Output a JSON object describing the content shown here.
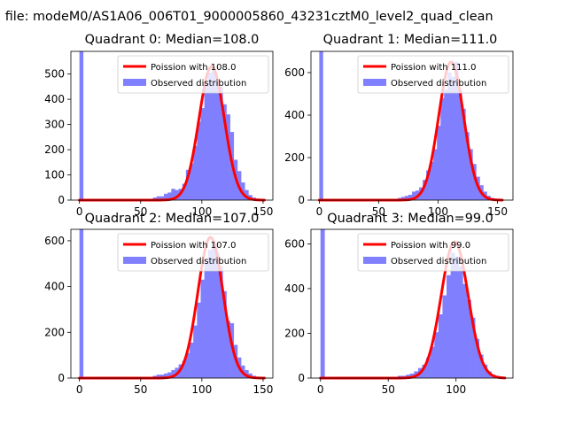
{
  "figure": {
    "suptitle": "n file: modeM0/AS1A06_006T01_9000005860_43231cztM0_level2_quad_clean"
  },
  "colors": {
    "hist": "#8080ff",
    "fit": "#ff0000",
    "axis": "#000000"
  },
  "chart_data": [
    {
      "type": "bar",
      "title": "Quadrant 0: Median=108.0",
      "xlim": [
        -7,
        158
      ],
      "ylim": [
        0,
        590
      ],
      "xticks": [
        0,
        50,
        100,
        150
      ],
      "yticks": [
        0,
        100,
        200,
        300,
        400,
        500
      ],
      "bin_width": 3,
      "bins": [
        {
          "x": 0,
          "count": 590
        },
        {
          "x": 3,
          "count": 5
        },
        {
          "x": 6,
          "count": 5
        },
        {
          "x": 9,
          "count": 5
        },
        {
          "x": 12,
          "count": 5
        },
        {
          "x": 15,
          "count": 5
        },
        {
          "x": 18,
          "count": 5
        },
        {
          "x": 21,
          "count": 5
        },
        {
          "x": 24,
          "count": 5
        },
        {
          "x": 27,
          "count": 5
        },
        {
          "x": 30,
          "count": 5
        },
        {
          "x": 33,
          "count": 5
        },
        {
          "x": 36,
          "count": 5
        },
        {
          "x": 39,
          "count": 5
        },
        {
          "x": 42,
          "count": 5
        },
        {
          "x": 45,
          "count": 5
        },
        {
          "x": 48,
          "count": 5
        },
        {
          "x": 51,
          "count": 5
        },
        {
          "x": 54,
          "count": 5
        },
        {
          "x": 57,
          "count": 5
        },
        {
          "x": 60,
          "count": 10
        },
        {
          "x": 63,
          "count": 15
        },
        {
          "x": 66,
          "count": 15
        },
        {
          "x": 69,
          "count": 25
        },
        {
          "x": 72,
          "count": 30
        },
        {
          "x": 75,
          "count": 45
        },
        {
          "x": 78,
          "count": 40
        },
        {
          "x": 81,
          "count": 45
        },
        {
          "x": 84,
          "count": 65
        },
        {
          "x": 87,
          "count": 120
        },
        {
          "x": 90,
          "count": 145
        },
        {
          "x": 93,
          "count": 215
        },
        {
          "x": 96,
          "count": 310
        },
        {
          "x": 99,
          "count": 365
        },
        {
          "x": 102,
          "count": 460
        },
        {
          "x": 105,
          "count": 505
        },
        {
          "x": 108,
          "count": 530
        },
        {
          "x": 111,
          "count": 480
        },
        {
          "x": 114,
          "count": 450
        },
        {
          "x": 117,
          "count": 380
        },
        {
          "x": 120,
          "count": 340
        },
        {
          "x": 123,
          "count": 270
        },
        {
          "x": 126,
          "count": 160
        },
        {
          "x": 129,
          "count": 115
        },
        {
          "x": 132,
          "count": 70
        },
        {
          "x": 135,
          "count": 40
        },
        {
          "x": 138,
          "count": 20
        },
        {
          "x": 141,
          "count": 10
        },
        {
          "x": 144,
          "count": 5
        },
        {
          "x": 147,
          "count": 5
        }
      ],
      "fit": {
        "mean": 108,
        "peak": 530,
        "x_range": [
          0,
          151
        ]
      },
      "legend": {
        "position": "upper right",
        "entries": [
          "Poission with 108.0",
          "Observed distribution"
        ]
      }
    },
    {
      "type": "bar",
      "title": "Quadrant 1: Median=111.0",
      "xlim": [
        -7,
        163
      ],
      "ylim": [
        0,
        700
      ],
      "xticks": [
        0,
        50,
        100,
        150
      ],
      "yticks": [
        0,
        200,
        400,
        600
      ],
      "bin_width": 3,
      "bins": [
        {
          "x": 0,
          "count": 700
        },
        {
          "x": 3,
          "count": 5
        },
        {
          "x": 6,
          "count": 5
        },
        {
          "x": 9,
          "count": 5
        },
        {
          "x": 12,
          "count": 5
        },
        {
          "x": 15,
          "count": 5
        },
        {
          "x": 18,
          "count": 5
        },
        {
          "x": 21,
          "count": 5
        },
        {
          "x": 24,
          "count": 5
        },
        {
          "x": 27,
          "count": 5
        },
        {
          "x": 30,
          "count": 5
        },
        {
          "x": 33,
          "count": 5
        },
        {
          "x": 36,
          "count": 5
        },
        {
          "x": 39,
          "count": 5
        },
        {
          "x": 42,
          "count": 5
        },
        {
          "x": 45,
          "count": 5
        },
        {
          "x": 48,
          "count": 5
        },
        {
          "x": 51,
          "count": 5
        },
        {
          "x": 54,
          "count": 5
        },
        {
          "x": 57,
          "count": 5
        },
        {
          "x": 60,
          "count": 5
        },
        {
          "x": 63,
          "count": 5
        },
        {
          "x": 66,
          "count": 10
        },
        {
          "x": 69,
          "count": 15
        },
        {
          "x": 72,
          "count": 20
        },
        {
          "x": 75,
          "count": 25
        },
        {
          "x": 78,
          "count": 40
        },
        {
          "x": 81,
          "count": 45
        },
        {
          "x": 84,
          "count": 60
        },
        {
          "x": 87,
          "count": 95
        },
        {
          "x": 90,
          "count": 140
        },
        {
          "x": 93,
          "count": 180
        },
        {
          "x": 96,
          "count": 240
        },
        {
          "x": 99,
          "count": 350
        },
        {
          "x": 102,
          "count": 480
        },
        {
          "x": 105,
          "count": 520
        },
        {
          "x": 108,
          "count": 600
        },
        {
          "x": 111,
          "count": 580
        },
        {
          "x": 114,
          "count": 650
        },
        {
          "x": 117,
          "count": 520
        },
        {
          "x": 120,
          "count": 430
        },
        {
          "x": 123,
          "count": 320
        },
        {
          "x": 126,
          "count": 240
        },
        {
          "x": 129,
          "count": 170
        },
        {
          "x": 132,
          "count": 110
        },
        {
          "x": 135,
          "count": 70
        },
        {
          "x": 138,
          "count": 40
        },
        {
          "x": 141,
          "count": 20
        },
        {
          "x": 144,
          "count": 10
        },
        {
          "x": 147,
          "count": 5
        },
        {
          "x": 150,
          "count": 5
        }
      ],
      "fit": {
        "mean": 111,
        "peak": 650,
        "x_range": [
          0,
          154
        ]
      },
      "legend": {
        "position": "upper right",
        "entries": [
          "Poission with 111.0",
          "Observed distribution"
        ]
      }
    },
    {
      "type": "bar",
      "title": "Quadrant 2: Median=107.0",
      "xlim": [
        -7,
        158
      ],
      "ylim": [
        0,
        650
      ],
      "xticks": [
        0,
        50,
        100,
        150
      ],
      "yticks": [
        0,
        200,
        400,
        600
      ],
      "bin_width": 3,
      "bins": [
        {
          "x": 0,
          "count": 650
        },
        {
          "x": 3,
          "count": 5
        },
        {
          "x": 6,
          "count": 5
        },
        {
          "x": 9,
          "count": 5
        },
        {
          "x": 12,
          "count": 5
        },
        {
          "x": 15,
          "count": 5
        },
        {
          "x": 18,
          "count": 5
        },
        {
          "x": 21,
          "count": 5
        },
        {
          "x": 24,
          "count": 5
        },
        {
          "x": 27,
          "count": 5
        },
        {
          "x": 30,
          "count": 5
        },
        {
          "x": 33,
          "count": 5
        },
        {
          "x": 36,
          "count": 5
        },
        {
          "x": 39,
          "count": 5
        },
        {
          "x": 42,
          "count": 5
        },
        {
          "x": 45,
          "count": 5
        },
        {
          "x": 48,
          "count": 5
        },
        {
          "x": 51,
          "count": 5
        },
        {
          "x": 54,
          "count": 5
        },
        {
          "x": 57,
          "count": 5
        },
        {
          "x": 60,
          "count": 10
        },
        {
          "x": 63,
          "count": 15
        },
        {
          "x": 66,
          "count": 15
        },
        {
          "x": 69,
          "count": 20
        },
        {
          "x": 72,
          "count": 25
        },
        {
          "x": 75,
          "count": 35
        },
        {
          "x": 78,
          "count": 45
        },
        {
          "x": 81,
          "count": 60
        },
        {
          "x": 84,
          "count": 75
        },
        {
          "x": 87,
          "count": 110
        },
        {
          "x": 90,
          "count": 155
        },
        {
          "x": 93,
          "count": 230
        },
        {
          "x": 96,
          "count": 330
        },
        {
          "x": 99,
          "count": 430
        },
        {
          "x": 102,
          "count": 510
        },
        {
          "x": 105,
          "count": 560
        },
        {
          "x": 108,
          "count": 600
        },
        {
          "x": 111,
          "count": 550
        },
        {
          "x": 114,
          "count": 490
        },
        {
          "x": 117,
          "count": 380
        },
        {
          "x": 120,
          "count": 250
        },
        {
          "x": 123,
          "count": 240
        },
        {
          "x": 126,
          "count": 145
        },
        {
          "x": 129,
          "count": 90
        },
        {
          "x": 132,
          "count": 55
        },
        {
          "x": 135,
          "count": 35
        },
        {
          "x": 138,
          "count": 20
        },
        {
          "x": 141,
          "count": 10
        },
        {
          "x": 144,
          "count": 5
        },
        {
          "x": 147,
          "count": 5
        }
      ],
      "fit": {
        "mean": 107,
        "peak": 615,
        "x_range": [
          0,
          151
        ]
      },
      "legend": {
        "position": "upper right",
        "entries": [
          "Poission with 107.0",
          "Observed distribution"
        ]
      }
    },
    {
      "type": "bar",
      "title": "Quadrant 3: Median=99.0",
      "xlim": [
        -7,
        142
      ],
      "ylim": [
        0,
        665
      ],
      "xticks": [
        0,
        50,
        100
      ],
      "yticks": [
        0,
        200,
        400,
        600
      ],
      "bin_width": 3,
      "bins": [
        {
          "x": 0,
          "count": 665
        },
        {
          "x": 3,
          "count": 5
        },
        {
          "x": 6,
          "count": 5
        },
        {
          "x": 9,
          "count": 5
        },
        {
          "x": 12,
          "count": 5
        },
        {
          "x": 15,
          "count": 5
        },
        {
          "x": 18,
          "count": 5
        },
        {
          "x": 21,
          "count": 5
        },
        {
          "x": 24,
          "count": 5
        },
        {
          "x": 27,
          "count": 5
        },
        {
          "x": 30,
          "count": 5
        },
        {
          "x": 33,
          "count": 5
        },
        {
          "x": 36,
          "count": 5
        },
        {
          "x": 39,
          "count": 5
        },
        {
          "x": 42,
          "count": 5
        },
        {
          "x": 45,
          "count": 5
        },
        {
          "x": 48,
          "count": 5
        },
        {
          "x": 51,
          "count": 5
        },
        {
          "x": 54,
          "count": 5
        },
        {
          "x": 57,
          "count": 10
        },
        {
          "x": 60,
          "count": 10
        },
        {
          "x": 63,
          "count": 15
        },
        {
          "x": 66,
          "count": 20
        },
        {
          "x": 69,
          "count": 30
        },
        {
          "x": 72,
          "count": 45
        },
        {
          "x": 75,
          "count": 60
        },
        {
          "x": 78,
          "count": 90
        },
        {
          "x": 81,
          "count": 140
        },
        {
          "x": 84,
          "count": 205
        },
        {
          "x": 87,
          "count": 285
        },
        {
          "x": 90,
          "count": 370
        },
        {
          "x": 93,
          "count": 460
        },
        {
          "x": 96,
          "count": 560
        },
        {
          "x": 99,
          "count": 540
        },
        {
          "x": 102,
          "count": 500
        },
        {
          "x": 105,
          "count": 420
        },
        {
          "x": 108,
          "count": 350
        },
        {
          "x": 111,
          "count": 270
        },
        {
          "x": 114,
          "count": 175
        },
        {
          "x": 117,
          "count": 105
        },
        {
          "x": 120,
          "count": 60
        },
        {
          "x": 123,
          "count": 30
        },
        {
          "x": 126,
          "count": 15
        },
        {
          "x": 129,
          "count": 10
        },
        {
          "x": 132,
          "count": 5
        }
      ],
      "fit": {
        "mean": 99,
        "peak": 610,
        "x_range": [
          0,
          136
        ]
      },
      "legend": {
        "position": "upper right",
        "entries": [
          "Poission with 99.0",
          "Observed distribution"
        ]
      }
    }
  ]
}
